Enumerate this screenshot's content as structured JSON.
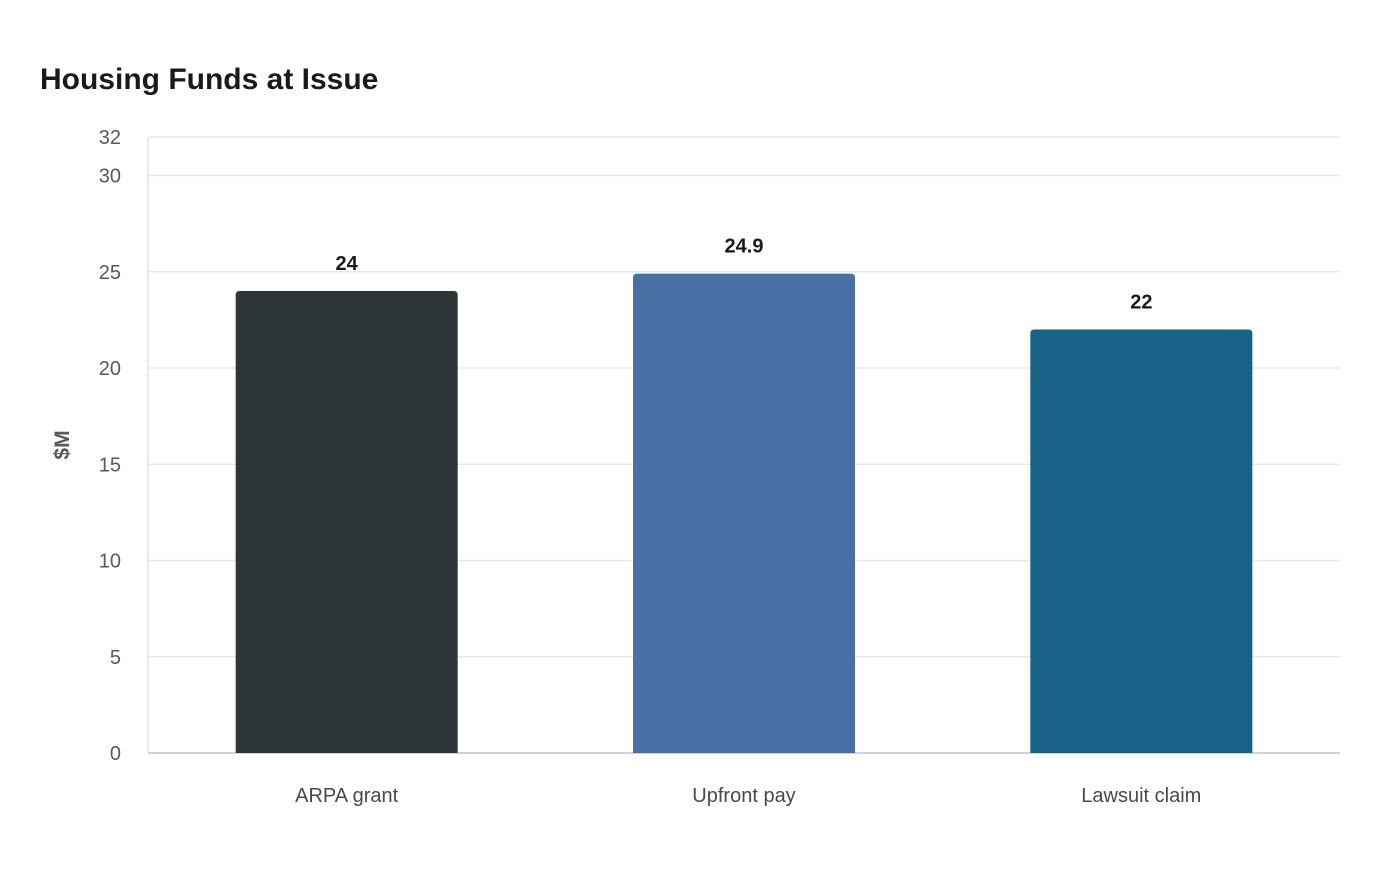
{
  "chart_data": {
    "type": "bar",
    "title": "Housing Funds at Issue",
    "xlabel": "",
    "ylabel": "$M",
    "categories": [
      "ARPA grant",
      "Upfront pay",
      "Lawsuit claim"
    ],
    "values": [
      24,
      24.9,
      22
    ],
    "value_labels": [
      "24",
      "24.9",
      "22"
    ],
    "colors": [
      "#2e3538",
      "#4a6fa5",
      "#186187"
    ],
    "ylim": [
      0,
      32
    ],
    "yticks": [
      0,
      5,
      10,
      15,
      20,
      25,
      30,
      32
    ],
    "grid": true,
    "legend": "none"
  }
}
